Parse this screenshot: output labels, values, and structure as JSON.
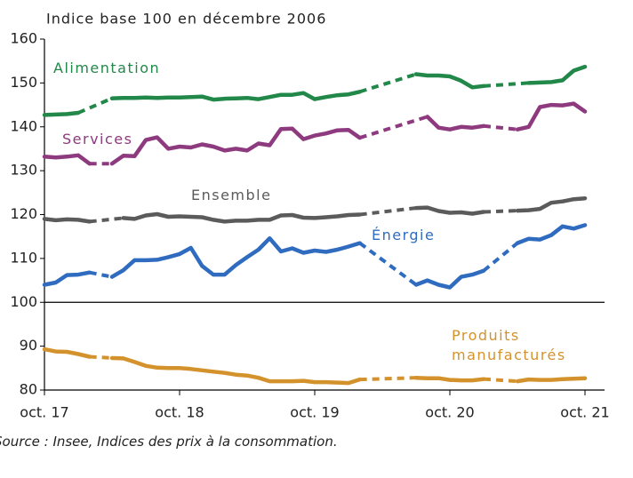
{
  "chart_data": {
    "type": "line",
    "title": "Indice base 100 en décembre 2006",
    "source": "Source : Insee, Indices des prix à la consommation.",
    "categories": [
      "oct. 17",
      null,
      null,
      null,
      null,
      null,
      null,
      null,
      null,
      null,
      null,
      null,
      "oct. 18",
      null,
      null,
      null,
      null,
      null,
      null,
      null,
      null,
      null,
      null,
      null,
      "oct. 19",
      null,
      null,
      null,
      null,
      null,
      null,
      null,
      null,
      null,
      null,
      null,
      "oct. 20",
      null,
      null,
      null,
      null,
      null,
      null,
      null,
      null,
      null,
      null,
      null,
      "oct. 21"
    ],
    "ylim": [
      80,
      160
    ],
    "yticks": [
      80,
      90,
      100,
      110,
      120,
      130,
      140,
      150,
      160
    ],
    "hline": 100,
    "gap_style": "dashed",
    "grid": false,
    "series": [
      {
        "name": "Alimentation",
        "color": "#22884a",
        "values": [
          142.7,
          142.8,
          142.9,
          143.2,
          null,
          null,
          146.5,
          146.6,
          146.6,
          146.7,
          146.6,
          146.7,
          146.7,
          146.8,
          146.9,
          146.2,
          146.4,
          146.5,
          146.6,
          146.3,
          146.8,
          147.3,
          147.3,
          147.7,
          146.3,
          146.8,
          147.2,
          147.4,
          148.0,
          null,
          null,
          null,
          null,
          152.0,
          151.7,
          151.7,
          151.5,
          150.5,
          149.0,
          149.3,
          null,
          null,
          null,
          150.0,
          150.1,
          150.2,
          150.6,
          152.8,
          153.7
        ]
      },
      {
        "name": "Services",
        "color": "#8e3a7e",
        "values": [
          133.2,
          133.0,
          133.2,
          133.5,
          131.6,
          null,
          131.6,
          133.4,
          133.3,
          137.0,
          137.6,
          135.0,
          135.5,
          135.3,
          136.0,
          135.5,
          134.6,
          135.0,
          134.6,
          136.2,
          135.8,
          139.5,
          139.6,
          137.2,
          138.0,
          138.5,
          139.2,
          139.3,
          137.5,
          null,
          null,
          null,
          null,
          null,
          142.3,
          139.8,
          139.4,
          140.0,
          139.8,
          140.2,
          null,
          null,
          139.4,
          140.0,
          144.5,
          145.0,
          144.9,
          145.3,
          143.5
        ]
      },
      {
        "name": "Ensemble",
        "color": "#5b5b5b",
        "values": [
          119.0,
          118.7,
          118.9,
          118.8,
          118.4,
          null,
          null,
          119.2,
          119.0,
          119.8,
          120.1,
          119.5,
          119.6,
          119.5,
          119.4,
          118.8,
          118.4,
          118.6,
          118.6,
          118.8,
          118.8,
          119.8,
          119.9,
          119.3,
          119.2,
          119.4,
          119.6,
          119.9,
          120.0,
          null,
          null,
          null,
          null,
          121.5,
          121.6,
          120.8,
          120.4,
          120.5,
          120.2,
          120.6,
          null,
          null,
          120.9,
          121.0,
          121.3,
          122.7,
          123.0,
          123.5,
          123.7
        ]
      },
      {
        "name": "Énergie",
        "color": "#2f6cbf",
        "values": [
          104.0,
          104.5,
          106.2,
          106.3,
          106.8,
          null,
          105.8,
          107.3,
          109.6,
          109.6,
          109.7,
          110.3,
          111.0,
          112.4,
          108.3,
          106.3,
          106.3,
          108.5,
          110.3,
          112.0,
          114.6,
          111.6,
          112.3,
          111.3,
          111.8,
          111.5,
          112.0,
          112.7,
          113.5,
          null,
          null,
          null,
          null,
          104.0,
          105.0,
          104.0,
          103.4,
          105.8,
          106.3,
          107.2,
          null,
          null,
          113.5,
          114.5,
          114.3,
          115.3,
          117.3,
          116.8,
          117.6
        ]
      },
      {
        "name": "Produits manufacturés",
        "color": "#d4922c",
        "values": [
          89.3,
          88.8,
          88.7,
          88.2,
          87.6,
          null,
          87.3,
          87.2,
          86.4,
          85.5,
          85.1,
          85.0,
          85.0,
          84.8,
          84.5,
          84.2,
          83.9,
          83.5,
          83.3,
          82.8,
          82.0,
          82.0,
          82.0,
          82.1,
          81.8,
          81.8,
          81.7,
          81.6,
          82.4,
          null,
          null,
          null,
          null,
          82.8,
          82.7,
          82.7,
          82.3,
          82.2,
          82.2,
          82.5,
          null,
          null,
          82.0,
          82.4,
          82.3,
          82.3,
          82.5,
          82.6,
          82.7
        ]
      }
    ]
  }
}
